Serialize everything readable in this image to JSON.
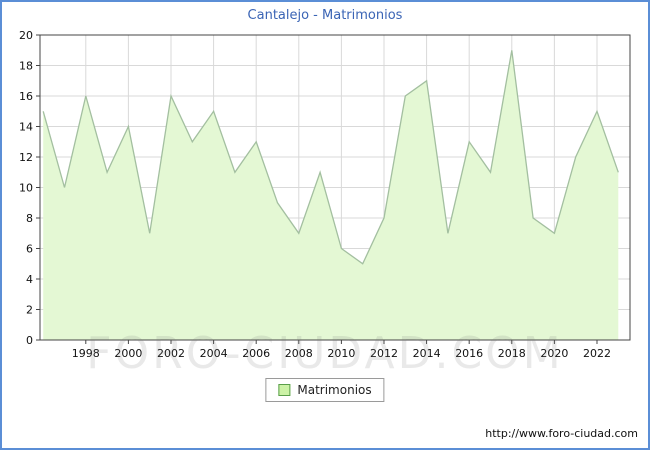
{
  "title": "Cantalejo - Matrimonios",
  "legend": {
    "label": "Matrimonios"
  },
  "footer_url": "http://www.foro-ciudad.com",
  "watermark": "FORO-CIUDAD.COM",
  "colors": {
    "frame_border": "#5b8ed6",
    "title_text": "#3a64b5",
    "area_fill": "#e4f8d4",
    "area_line": "#a3bfa0",
    "grid_line": "#d9d9d9",
    "plot_border": "#444444",
    "legend_swatch_fill": "#ccf2a6",
    "legend_swatch_border": "#5a9e4a"
  },
  "chart_data": {
    "type": "area",
    "title": "Cantalejo - Matrimonios",
    "xlabel": "",
    "ylabel": "",
    "x": [
      1996,
      1997,
      1998,
      1999,
      2000,
      2001,
      2002,
      2003,
      2004,
      2005,
      2006,
      2007,
      2008,
      2009,
      2010,
      2011,
      2012,
      2013,
      2014,
      2015,
      2016,
      2017,
      2018,
      2019,
      2020,
      2021,
      2022,
      2023
    ],
    "values": [
      15,
      10,
      16,
      11,
      14,
      7,
      16,
      13,
      15,
      11,
      13,
      9,
      7,
      11,
      6,
      5,
      8,
      16,
      17,
      7,
      13,
      11,
      19,
      8,
      7,
      12,
      15,
      11
    ],
    "series_name": "Matrimonios",
    "ylim": [
      0,
      20
    ],
    "ytick_step": 2,
    "xticks": [
      1998,
      2000,
      2002,
      2004,
      2006,
      2008,
      2010,
      2012,
      2014,
      2016,
      2018,
      2020,
      2022
    ],
    "xrange": [
      1995.85,
      2023.55
    ],
    "grid": true,
    "legend_position": "bottom-center"
  }
}
